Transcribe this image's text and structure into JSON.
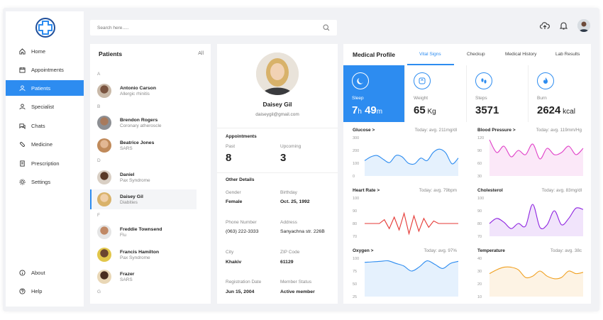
{
  "search": {
    "placeholder": "Search here....."
  },
  "sidebar": {
    "items": [
      {
        "label": "Home",
        "icon": "home-icon"
      },
      {
        "label": "Appointments",
        "icon": "calendar-icon"
      },
      {
        "label": "Patients",
        "icon": "user-icon",
        "active": true
      },
      {
        "label": "Specialist",
        "icon": "specialist-icon"
      },
      {
        "label": "Chats",
        "icon": "chat-icon"
      },
      {
        "label": "Medicine",
        "icon": "pill-icon"
      },
      {
        "label": "Prescription",
        "icon": "prescription-icon"
      },
      {
        "label": "Settings",
        "icon": "gear-icon"
      }
    ],
    "bottom": [
      {
        "label": "About",
        "icon": "info-icon"
      },
      {
        "label": "Help",
        "icon": "help-icon"
      }
    ]
  },
  "patients": {
    "title": "Patients",
    "all_label": "All",
    "letters": [
      "A",
      "B",
      "D",
      "F",
      "G"
    ],
    "list": [
      {
        "name": "Antonio Carson",
        "diagnosis": "Allergic rhinitis"
      },
      {
        "name": "Brendon Rogers",
        "diagnosis": "Coronary atheroscle"
      },
      {
        "name": "Beatrice Jones",
        "diagnosis": "SARS"
      },
      {
        "name": "Daniel",
        "diagnosis": "Pax Syndrome"
      },
      {
        "name": "Daisey Gil",
        "diagnosis": "Diabities"
      },
      {
        "name": "Freddie Townsend",
        "diagnosis": "Flu"
      },
      {
        "name": "Francis Hamilton",
        "diagnosis": "Pax Syndrome"
      },
      {
        "name": "Frazer",
        "diagnosis": "SARS"
      }
    ]
  },
  "profile": {
    "name": "Daisey Gil",
    "email": "daiseygil@gmail.com",
    "appointments_title": "Appointments",
    "past_label": "Past",
    "past_value": "8",
    "upcoming_label": "Upcoming",
    "upcoming_value": "3",
    "other_title": "Other Details",
    "gender_label": "Gender",
    "gender": "Female",
    "birthday_label": "Birthday",
    "birthday": "Oct. 25, 1992",
    "phone_label": "Phone Number",
    "phone": "(063) 222-3333",
    "address_label": "Address",
    "address": "Sanyachna str. 226B",
    "city_label": "City",
    "city": "Khakiv",
    "zip_label": "ZIP Code",
    "zip": "61129",
    "reg_label": "Registration Date",
    "reg": "Jun 15, 2004",
    "status_label": "Member Status",
    "status": "Active member"
  },
  "medical": {
    "title": "Medical Profile",
    "tabs": [
      "Vital Signs",
      "Checkup",
      "Medical History",
      "Lab Results"
    ],
    "vitals": [
      {
        "label": "Sleep",
        "v1": "7",
        "u1": "h",
        "v2": " 49",
        "u2": "m",
        "icon": "moon-icon"
      },
      {
        "label": "Weight",
        "v1": "65",
        "u1": " Kg",
        "v2": "",
        "u2": "",
        "icon": "scale-icon"
      },
      {
        "label": "Steps",
        "v1": "3571",
        "u1": "",
        "v2": "",
        "u2": "",
        "icon": "footsteps-icon"
      },
      {
        "label": "Burn",
        "v1": "2624",
        "u1": " kcal",
        "v2": "",
        "u2": "",
        "icon": "flame-icon"
      }
    ],
    "colors": {
      "accent": "#2d8cf0",
      "pink": "#e040c8",
      "red": "#e53935",
      "purple": "#8e24e0",
      "orange": "#f0a020"
    }
  },
  "chart_data": [
    {
      "type": "area",
      "title": "Glucose >",
      "subtitle": "Today: avg. 211mg/dl",
      "yticks": [
        300,
        200,
        100,
        0
      ],
      "ylim": [
        0,
        300
      ],
      "y": [
        120,
        150,
        160,
        130,
        105,
        160,
        150,
        100,
        95,
        140,
        120,
        185,
        210,
        180,
        95,
        140
      ]
    },
    {
      "type": "area",
      "title": "Blood Pressure >",
      "subtitle": "Today: avg. 119mm/Hg",
      "yticks": [
        120,
        90,
        60,
        30
      ],
      "ylim": [
        30,
        120
      ],
      "y": [
        115,
        85,
        100,
        75,
        90,
        80,
        105,
        70,
        95,
        80,
        85,
        100,
        80,
        95
      ]
    },
    {
      "type": "line",
      "title": "Heart Rate >",
      "subtitle": "Today: avg. 79bpm",
      "yticks": [
        100,
        90,
        80,
        70
      ],
      "ylim": [
        70,
        100
      ],
      "y": [
        80,
        80,
        80,
        80,
        83,
        76,
        85,
        75,
        88,
        72,
        86,
        74,
        84,
        77,
        82,
        80,
        80,
        80,
        80,
        80
      ]
    },
    {
      "type": "area",
      "title": "Cholesterol",
      "subtitle": "Today: avg. 83mg/dl",
      "yticks": [
        100,
        90,
        80,
        70
      ],
      "ylim": [
        70,
        100
      ],
      "y": [
        80,
        84,
        81,
        76,
        80,
        78,
        95,
        77,
        79,
        90,
        79,
        84,
        92,
        91
      ]
    },
    {
      "type": "area",
      "title": "Oxygen >",
      "subtitle": "Today: avg. 97%",
      "yticks": [
        100,
        75,
        50,
        25
      ],
      "ylim": [
        25,
        100
      ],
      "y": [
        92,
        93,
        94,
        95,
        90,
        85,
        75,
        83,
        95,
        88,
        80,
        90,
        94
      ]
    },
    {
      "type": "area",
      "title": "Temperature",
      "subtitle": "Today: avg. 38c",
      "yticks": [
        40,
        30,
        20,
        10
      ],
      "ylim": [
        10,
        40
      ],
      "y": [
        28,
        31,
        33,
        33,
        31,
        25,
        26,
        30,
        26,
        24,
        25,
        30,
        28,
        29
      ]
    }
  ]
}
